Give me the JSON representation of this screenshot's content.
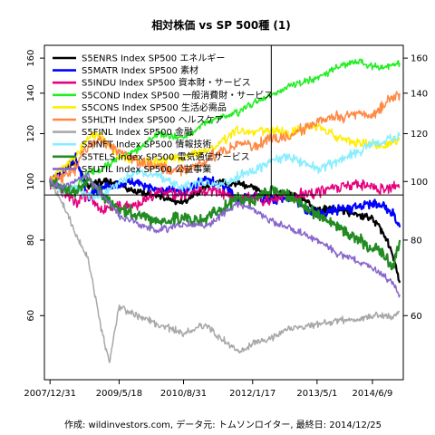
{
  "chart_data": {
    "type": "line",
    "title": "相対株価 vs SP 500種 (1)",
    "caption": "作成: wildinvestors.com, データ元: トムソンロイター, 最終日: 2014/12/25",
    "scale": "log",
    "ylim": [
      47,
      168
    ],
    "y_ticks": [
      60,
      80,
      100,
      120,
      140,
      160
    ],
    "x_ticks": [
      "2007/12/31",
      "2009/5/18",
      "2010/8/31",
      "2012/1/17",
      "2013/5/1",
      "2014/6/9"
    ],
    "reference_hline": 95,
    "reference_vline": "2012/6/1",
    "series": [
      {
        "name": "S5ENRS Index SP500 エネルギー",
        "color": "#000000",
        "width": 2.2,
        "points": [
          [
            "2007/12/31",
            100
          ],
          [
            "2008/4/1",
            104
          ],
          [
            "2008/7/1",
            109
          ],
          [
            "2008/10/1",
            98
          ],
          [
            "2009/1/1",
            100
          ],
          [
            "2009/5/18",
            99
          ],
          [
            "2009/10/1",
            96
          ],
          [
            "2010/3/1",
            95
          ],
          [
            "2010/8/31",
            92
          ],
          [
            "2011/2/1",
            98
          ],
          [
            "2011/6/1",
            100
          ],
          [
            "2011/10/1",
            99
          ],
          [
            "2012/1/17",
            98
          ],
          [
            "2012/6/1",
            94
          ],
          [
            "2012/10/1",
            96
          ],
          [
            "2013/5/1",
            90
          ],
          [
            "2013/10/1",
            90
          ],
          [
            "2014/3/1",
            88
          ],
          [
            "2014/6/9",
            87
          ],
          [
            "2014/9/1",
            82
          ],
          [
            "2014/11/1",
            76
          ],
          [
            "2014/12/25",
            68
          ]
        ]
      },
      {
        "name": "S5MATR Index SP500 素材",
        "color": "#0000ff",
        "width": 2.2,
        "points": [
          [
            "2007/12/31",
            100
          ],
          [
            "2008/4/1",
            104
          ],
          [
            "2008/7/1",
            110
          ],
          [
            "2008/10/1",
            94
          ],
          [
            "2009/1/1",
            97
          ],
          [
            "2009/5/18",
            99
          ],
          [
            "2009/10/1",
            100
          ],
          [
            "2010/3/1",
            97
          ],
          [
            "2010/8/31",
            96
          ],
          [
            "2011/2/1",
            101
          ],
          [
            "2011/6/1",
            99
          ],
          [
            "2011/10/1",
            93
          ],
          [
            "2012/1/17",
            95
          ],
          [
            "2012/6/1",
            93
          ],
          [
            "2012/10/1",
            94
          ],
          [
            "2013/5/1",
            88
          ],
          [
            "2013/10/1",
            90
          ],
          [
            "2014/3/1",
            91
          ],
          [
            "2014/6/9",
            92
          ],
          [
            "2014/9/1",
            91
          ],
          [
            "2014/11/1",
            89
          ],
          [
            "2014/12/25",
            84
          ]
        ]
      },
      {
        "name": "S5INDU Index SP500 資本財・サービス",
        "color": "#e6007e",
        "width": 1.5,
        "points": [
          [
            "2007/12/31",
            100
          ],
          [
            "2008/4/1",
            97
          ],
          [
            "2008/7/1",
            92
          ],
          [
            "2008/10/1",
            95
          ],
          [
            "2009/1/1",
            90
          ],
          [
            "2009/5/18",
            91
          ],
          [
            "2009/10/1",
            92
          ],
          [
            "2010/3/1",
            96
          ],
          [
            "2010/8/31",
            95
          ],
          [
            "2011/2/1",
            97
          ],
          [
            "2011/6/1",
            96
          ],
          [
            "2011/10/1",
            93
          ],
          [
            "2012/1/17",
            94
          ],
          [
            "2012/6/1",
            93
          ],
          [
            "2012/10/1",
            94
          ],
          [
            "2013/5/1",
            96
          ],
          [
            "2013/10/1",
            98
          ],
          [
            "2014/3/1",
            99
          ],
          [
            "2014/6/9",
            98
          ],
          [
            "2014/9/1",
            97
          ],
          [
            "2014/11/1",
            98
          ],
          [
            "2014/12/25",
            98
          ]
        ]
      },
      {
        "name": "S5COND Index SP500 一般消費財・サービス",
        "color": "#22ee22",
        "width": 1.5,
        "points": [
          [
            "2007/12/31",
            100
          ],
          [
            "2008/4/1",
            98
          ],
          [
            "2008/7/1",
            97
          ],
          [
            "2008/10/1",
            104
          ],
          [
            "2009/1/1",
            104
          ],
          [
            "2009/5/18",
            110
          ],
          [
            "2009/10/1",
            113
          ],
          [
            "2010/3/1",
            120
          ],
          [
            "2010/8/31",
            118
          ],
          [
            "2011/2/1",
            125
          ],
          [
            "2011/6/1",
            128
          ],
          [
            "2011/10/1",
            130
          ],
          [
            "2012/1/17",
            135
          ],
          [
            "2012/6/1",
            138
          ],
          [
            "2012/10/1",
            144
          ],
          [
            "2013/5/1",
            148
          ],
          [
            "2013/10/1",
            155
          ],
          [
            "2014/3/1",
            158
          ],
          [
            "2014/6/9",
            155
          ],
          [
            "2014/9/1",
            154
          ],
          [
            "2014/11/1",
            156
          ],
          [
            "2014/12/25",
            157
          ]
        ]
      },
      {
        "name": "S5CONS Index SP500 生活必需品",
        "color": "#ffee00",
        "width": 1.5,
        "points": [
          [
            "2007/12/31",
            100
          ],
          [
            "2008/4/1",
            105
          ],
          [
            "2008/7/1",
            110
          ],
          [
            "2008/10/1",
            118
          ],
          [
            "2009/1/1",
            120
          ],
          [
            "2009/5/18",
            110
          ],
          [
            "2009/10/1",
            108
          ],
          [
            "2010/3/1",
            108
          ],
          [
            "2010/8/31",
            110
          ],
          [
            "2011/2/1",
            112
          ],
          [
            "2011/6/1",
            116
          ],
          [
            "2011/10/1",
            122
          ],
          [
            "2012/1/17",
            120
          ],
          [
            "2012/6/1",
            122
          ],
          [
            "2012/10/1",
            120
          ],
          [
            "2013/5/1",
            124
          ],
          [
            "2013/10/1",
            118
          ],
          [
            "2014/3/1",
            116
          ],
          [
            "2014/6/9",
            115
          ],
          [
            "2014/9/1",
            114
          ],
          [
            "2014/11/1",
            116
          ],
          [
            "2014/12/25",
            118
          ]
        ]
      },
      {
        "name": "S5HLTH Index SP500 ヘルスケア",
        "color": "#ff8844",
        "width": 1.5,
        "points": [
          [
            "2007/12/31",
            100
          ],
          [
            "2008/4/1",
            102
          ],
          [
            "2008/7/1",
            105
          ],
          [
            "2008/10/1",
            115
          ],
          [
            "2009/1/1",
            118
          ],
          [
            "2009/5/18",
            112
          ],
          [
            "2009/10/1",
            108
          ],
          [
            "2010/3/1",
            106
          ],
          [
            "2010/8/31",
            104
          ],
          [
            "2011/2/1",
            108
          ],
          [
            "2011/6/1",
            112
          ],
          [
            "2011/10/1",
            115
          ],
          [
            "2012/1/17",
            114
          ],
          [
            "2012/6/1",
            118
          ],
          [
            "2012/10/1",
            118
          ],
          [
            "2013/5/1",
            126
          ],
          [
            "2013/10/1",
            128
          ],
          [
            "2014/3/1",
            130
          ],
          [
            "2014/6/9",
            128
          ],
          [
            "2014/9/1",
            134
          ],
          [
            "2014/11/1",
            138
          ],
          [
            "2014/12/25",
            140
          ]
        ]
      },
      {
        "name": "S5FINL Index SP500 金融",
        "color": "#a8a8a8",
        "width": 1.5,
        "points": [
          [
            "2007/12/31",
            100
          ],
          [
            "2008/4/1",
            92
          ],
          [
            "2008/7/1",
            82
          ],
          [
            "2008/10/1",
            75
          ],
          [
            "2009/1/1",
            58
          ],
          [
            "2009/3/10",
            50
          ],
          [
            "2009/5/18",
            62
          ],
          [
            "2009/10/1",
            60
          ],
          [
            "2010/3/1",
            58
          ],
          [
            "2010/8/31",
            56
          ],
          [
            "2011/2/1",
            58
          ],
          [
            "2011/6/1",
            55
          ],
          [
            "2011/10/1",
            52
          ],
          [
            "2012/1/17",
            54
          ],
          [
            "2012/6/1",
            55
          ],
          [
            "2012/10/1",
            57
          ],
          [
            "2013/5/1",
            58
          ],
          [
            "2013/10/1",
            59
          ],
          [
            "2014/3/1",
            59
          ],
          [
            "2014/6/9",
            60
          ],
          [
            "2014/9/1",
            60
          ],
          [
            "2014/11/1",
            60
          ],
          [
            "2014/12/25",
            61
          ]
        ]
      },
      {
        "name": "S5INFT Index SP500 情報技術",
        "color": "#88eeff",
        "width": 1.5,
        "points": [
          [
            "2007/12/31",
            100
          ],
          [
            "2008/4/1",
            96
          ],
          [
            "2008/7/1",
            98
          ],
          [
            "2008/10/1",
            95
          ],
          [
            "2009/1/1",
            94
          ],
          [
            "2009/5/18",
            100
          ],
          [
            "2009/10/1",
            104
          ],
          [
            "2010/3/1",
            102
          ],
          [
            "2010/8/31",
            98
          ],
          [
            "2011/2/1",
            100
          ],
          [
            "2011/6/1",
            98
          ],
          [
            "2011/10/1",
            102
          ],
          [
            "2012/1/17",
            104
          ],
          [
            "2012/6/1",
            108
          ],
          [
            "2012/10/1",
            110
          ],
          [
            "2013/5/1",
            105
          ],
          [
            "2013/10/1",
            108
          ],
          [
            "2014/3/1",
            112
          ],
          [
            "2014/6/9",
            116
          ],
          [
            "2014/9/1",
            117
          ],
          [
            "2014/11/1",
            118
          ],
          [
            "2014/12/25",
            119
          ]
        ]
      },
      {
        "name": "S5TELS Index SP500 電気通信サービス",
        "color": "#228b22",
        "width": 2.2,
        "points": [
          [
            "2007/12/31",
            100
          ],
          [
            "2008/4/1",
            98
          ],
          [
            "2008/7/1",
            96
          ],
          [
            "2008/10/1",
            100
          ],
          [
            "2009/1/1",
            96
          ],
          [
            "2009/5/18",
            90
          ],
          [
            "2009/10/1",
            88
          ],
          [
            "2010/3/1",
            86
          ],
          [
            "2010/8/31",
            87
          ],
          [
            "2011/2/1",
            86
          ],
          [
            "2011/6/1",
            90
          ],
          [
            "2011/10/1",
            94
          ],
          [
            "2012/1/17",
            93
          ],
          [
            "2012/6/1",
            97
          ],
          [
            "2012/10/1",
            95
          ],
          [
            "2013/5/1",
            88
          ],
          [
            "2013/10/1",
            84
          ],
          [
            "2014/3/1",
            80
          ],
          [
            "2014/6/9",
            78
          ],
          [
            "2014/9/1",
            76
          ],
          [
            "2014/11/1",
            72
          ],
          [
            "2014/12/25",
            80
          ]
        ]
      },
      {
        "name": "S5UTIL Index SP500 公益事業",
        "color": "#8866cc",
        "width": 1.5,
        "points": [
          [
            "2007/12/31",
            100
          ],
          [
            "2008/4/1",
            98
          ],
          [
            "2008/7/1",
            100
          ],
          [
            "2008/10/1",
            102
          ],
          [
            "2009/1/1",
            96
          ],
          [
            "2009/5/18",
            88
          ],
          [
            "2009/10/1",
            85
          ],
          [
            "2010/3/1",
            83
          ],
          [
            "2010/8/31",
            85
          ],
          [
            "2011/2/1",
            84
          ],
          [
            "2011/6/1",
            88
          ],
          [
            "2011/10/1",
            92
          ],
          [
            "2012/1/17",
            90
          ],
          [
            "2012/6/1",
            86
          ],
          [
            "2012/10/1",
            84
          ],
          [
            "2013/5/1",
            80
          ],
          [
            "2013/10/1",
            76
          ],
          [
            "2014/3/1",
            74
          ],
          [
            "2014/6/9",
            72
          ],
          [
            "2014/9/1",
            70
          ],
          [
            "2014/11/1",
            68
          ],
          [
            "2014/12/25",
            65
          ]
        ]
      }
    ]
  }
}
